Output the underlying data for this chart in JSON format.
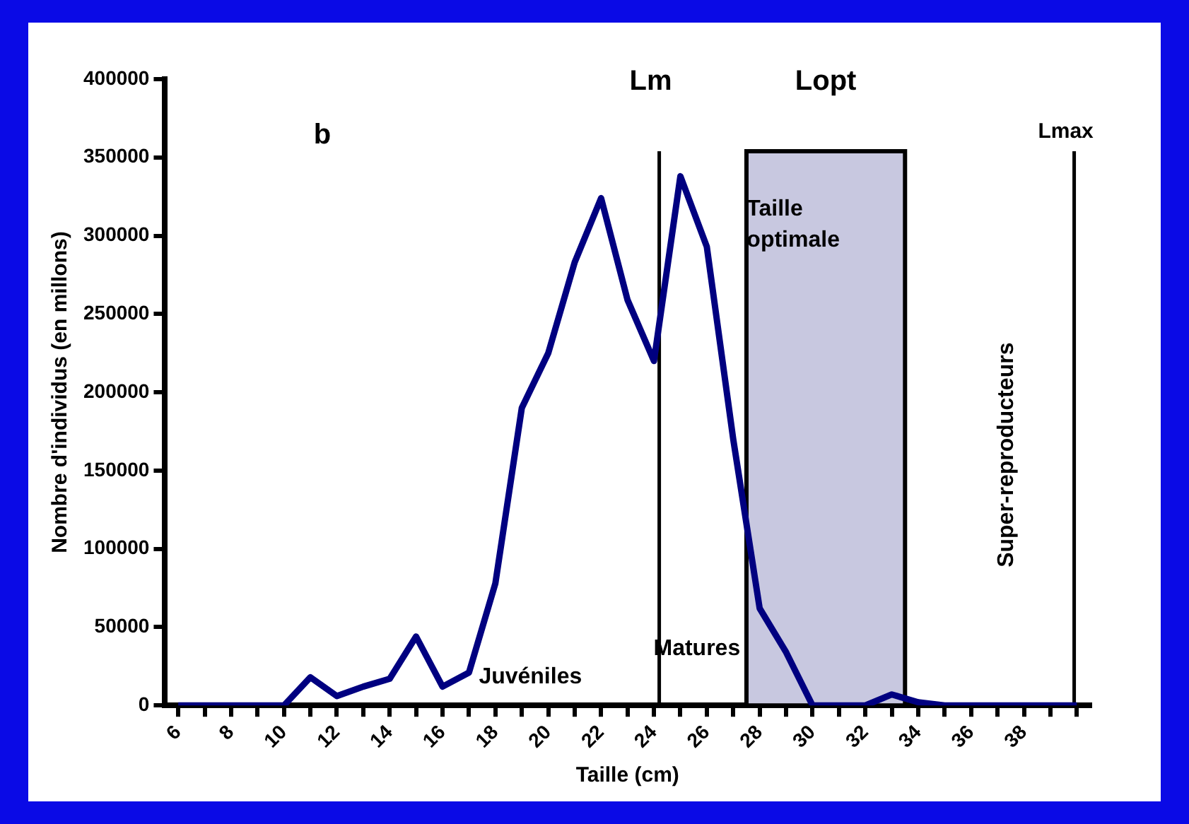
{
  "chart_data": {
    "type": "line",
    "xlabel": "Taille (cm)",
    "ylabel": "Nombre d'individus (en millons)",
    "x": [
      6,
      7,
      8,
      9,
      10,
      11,
      12,
      13,
      14,
      15,
      16,
      17,
      18,
      19,
      20,
      21,
      22,
      23,
      24,
      25,
      26,
      27,
      28,
      29,
      30,
      31,
      32,
      33,
      34,
      35,
      36,
      37,
      38,
      39,
      40
    ],
    "series": [
      {
        "color": "#000080",
        "values": [
          0,
          0,
          0,
          0,
          0,
          18000,
          6000,
          12000,
          17000,
          44000,
          12000,
          21000,
          78000,
          190000,
          225000,
          283000,
          324000,
          259000,
          220000,
          338000,
          293000,
          170000,
          62000,
          34000,
          0,
          0,
          0,
          7000,
          2000,
          0,
          0,
          0,
          0,
          0,
          0
        ]
      }
    ],
    "xlim": [
      5.5,
      40.5
    ],
    "xticks": [
      6,
      {
        "value": 7,
        "label": null
      },
      8,
      {
        "value": 9,
        "label": null
      },
      10,
      {
        "value": 11,
        "label": null
      },
      12,
      {
        "value": 13,
        "label": null
      },
      14,
      {
        "value": 15,
        "label": null
      },
      16,
      {
        "value": 17,
        "label": null
      },
      18,
      {
        "value": 19,
        "label": null
      },
      20,
      {
        "value": 21,
        "label": null
      },
      22,
      {
        "value": 23,
        "label": null
      },
      24,
      {
        "value": 25,
        "label": null
      },
      26,
      {
        "value": 27,
        "label": null
      },
      28,
      {
        "value": 29,
        "label": null
      },
      30,
      {
        "value": 31,
        "label": null
      },
      32,
      {
        "value": 33,
        "label": null
      },
      34,
      {
        "value": 35,
        "label": null
      },
      36,
      {
        "value": 37,
        "label": null
      },
      38,
      {
        "value": 39,
        "label": null
      },
      {
        "value": 40,
        "label": null
      }
    ],
    "ylim": [
      0,
      400000
    ],
    "yticks": [
      0,
      50000,
      100000,
      150000,
      200000,
      250000,
      300000,
      350000,
      400000
    ],
    "ref_lines": [
      {
        "axis": "x",
        "value": 24.2,
        "label": "Lm",
        "color": "#000000"
      },
      {
        "axis": "x",
        "value": 39.9,
        "label": "Lmax",
        "color": "#000000"
      }
    ],
    "bands": [
      {
        "axis": "x",
        "from": 27.5,
        "to": 33.5,
        "label": "Lopt",
        "color": "#c8c8e0"
      }
    ],
    "annotations": [
      "b",
      "Juvéniles",
      "Matures",
      "Taille optimale",
      "Super-reproducteurs"
    ],
    "grid": false,
    "legend": false,
    "marker": "none",
    "line_style": "solid"
  }
}
